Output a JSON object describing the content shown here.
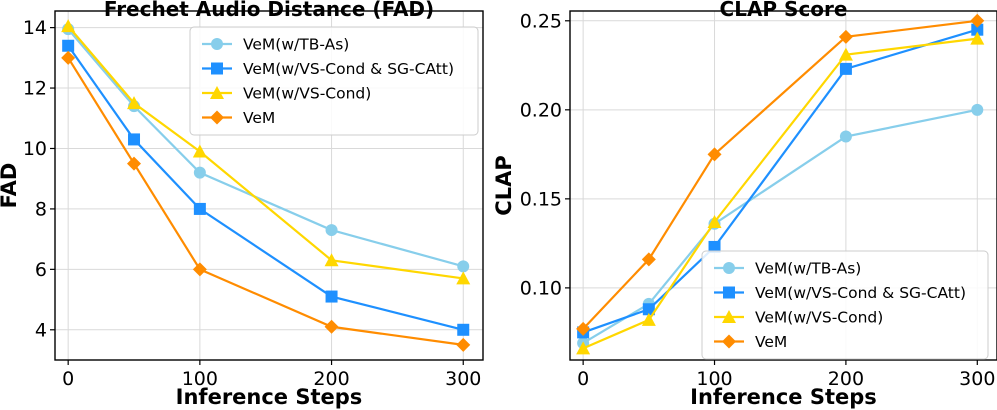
{
  "chart_data": [
    {
      "type": "line",
      "title": "Frechet Audio Distance (FAD)",
      "xlabel": "Inference Steps",
      "ylabel": "FAD",
      "x": [
        0,
        50,
        100,
        200,
        300
      ],
      "xlim": [
        -10,
        315
      ],
      "ylim": [
        3.0,
        14.55
      ],
      "xticks": [
        0,
        100,
        200,
        300
      ],
      "xtick_labels": [
        "0",
        "100",
        "200",
        "300"
      ],
      "yticks": [
        4,
        6,
        8,
        10,
        12,
        14
      ],
      "ytick_labels": [
        "4",
        "6",
        "8",
        "10",
        "12",
        "14"
      ],
      "grid": true,
      "legend_position": "top-right",
      "series": [
        {
          "name": "VeM(w/TB-As)",
          "color": "#87ceeb",
          "marker": "circle",
          "values": [
            13.95,
            11.4,
            9.2,
            7.3,
            6.1
          ]
        },
        {
          "name": "VeM(w/VS-Cond & SG-CAtt)",
          "color": "#1e90ff",
          "marker": "square",
          "values": [
            13.4,
            10.3,
            8.0,
            5.1,
            4.0
          ]
        },
        {
          "name": "VeM(w/VS-Cond)",
          "color": "#ffd700",
          "marker": "triangle",
          "values": [
            14.05,
            11.5,
            9.9,
            6.3,
            5.7
          ]
        },
        {
          "name": "VeM",
          "color": "#ff8c00",
          "marker": "diamond",
          "values": [
            13.0,
            9.5,
            6.0,
            4.1,
            3.5
          ]
        }
      ]
    },
    {
      "type": "line",
      "title": "CLAP Score",
      "xlabel": "Inference Steps",
      "ylabel": "CLAP",
      "x": [
        0,
        50,
        100,
        200,
        300
      ],
      "xlim": [
        -10,
        315
      ],
      "ylim": [
        0.0595,
        0.2555
      ],
      "xticks": [
        0,
        100,
        200,
        300
      ],
      "xtick_labels": [
        "0",
        "100",
        "200",
        "300"
      ],
      "yticks": [
        0.1,
        0.15,
        0.2,
        0.25
      ],
      "ytick_labels": [
        "0.10",
        "0.15",
        "0.20",
        "0.25"
      ],
      "grid": true,
      "legend_position": "lower-center",
      "series": [
        {
          "name": "VeM(w/TB-As)",
          "color": "#87ceeb",
          "marker": "circle",
          "values": [
            0.069,
            0.091,
            0.136,
            0.185,
            0.2
          ]
        },
        {
          "name": "VeM(w/VS-Cond & SG-CAtt)",
          "color": "#1e90ff",
          "marker": "square",
          "values": [
            0.075,
            0.088,
            0.123,
            0.223,
            0.245
          ]
        },
        {
          "name": "VeM(w/VS-Cond)",
          "color": "#ffd700",
          "marker": "triangle",
          "values": [
            0.066,
            0.082,
            0.137,
            0.231,
            0.24
          ]
        },
        {
          "name": "VeM",
          "color": "#ff8c00",
          "marker": "diamond",
          "values": [
            0.077,
            0.116,
            0.175,
            0.241,
            0.25
          ]
        }
      ]
    }
  ]
}
